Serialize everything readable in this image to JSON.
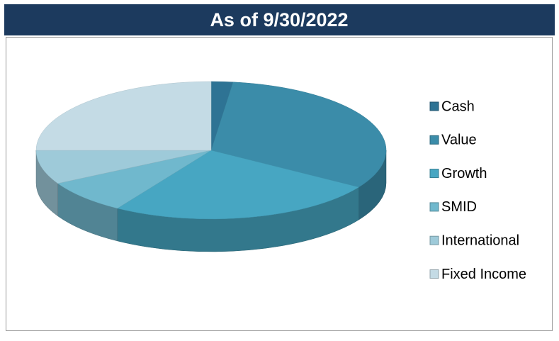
{
  "chart_data": {
    "type": "pie",
    "title": "As of 9/30/2022",
    "categories": [
      "Cash",
      "Value",
      "Growth",
      "SMID",
      "International",
      "Fixed Income"
    ],
    "values": [
      2,
      32,
      25,
      8,
      8,
      25
    ],
    "colors": [
      "#2e7394",
      "#3b8ca9",
      "#47a6c2",
      "#70b8cd",
      "#9ecad9",
      "#c4dbe5"
    ],
    "legend": "right"
  }
}
